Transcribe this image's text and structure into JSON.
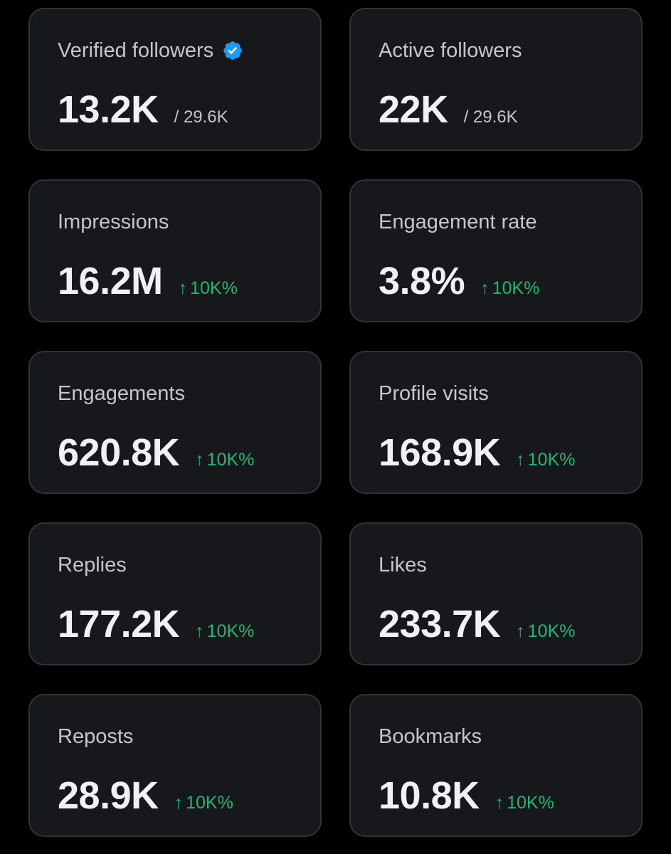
{
  "colors": {
    "background": "#000000",
    "card": "#16181c",
    "card_border": "#2f3336",
    "label": "#c4c7ca",
    "value": "#eff1f2",
    "positive": "#22b573",
    "verified_badge": "#1d9bf0"
  },
  "cards": [
    {
      "label": "Verified followers",
      "value": "13.2K",
      "total": "/ 29.6K",
      "icon": "verified-badge-icon"
    },
    {
      "label": "Active followers",
      "value": "22K",
      "total": "/ 29.6K"
    },
    {
      "label": "Impressions",
      "value": "16.2M",
      "arrow": "↑",
      "change": "10K%",
      "icon": "arrow-up-icon"
    },
    {
      "label": "Engagement rate",
      "value": "3.8%",
      "arrow": "↑",
      "change": "10K%",
      "icon": "arrow-up-icon"
    },
    {
      "label": "Engagements",
      "value": "620.8K",
      "arrow": "↑",
      "change": "10K%",
      "icon": "arrow-up-icon"
    },
    {
      "label": "Profile visits",
      "value": "168.9K",
      "arrow": "↑",
      "change": "10K%",
      "icon": "arrow-up-icon"
    },
    {
      "label": "Replies",
      "value": "177.2K",
      "arrow": "↑",
      "change": "10K%",
      "icon": "arrow-up-icon"
    },
    {
      "label": "Likes",
      "value": "233.7K",
      "arrow": "↑",
      "change": "10K%",
      "icon": "arrow-up-icon"
    },
    {
      "label": "Reposts",
      "value": "28.9K",
      "arrow": "↑",
      "change": "10K%",
      "icon": "arrow-up-icon"
    },
    {
      "label": "Bookmarks",
      "value": "10.8K",
      "arrow": "↑",
      "change": "10K%",
      "icon": "arrow-up-icon"
    }
  ]
}
